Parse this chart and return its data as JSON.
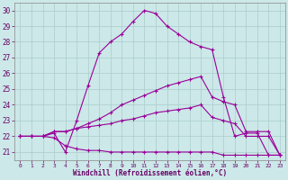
{
  "xlabel": "Windchill (Refroidissement éolien,°C)",
  "bg_color": "#cce8e8",
  "grid_color": "#aacccc",
  "line_color": "#990099",
  "xlim": [
    -0.5,
    23.5
  ],
  "ylim": [
    20.5,
    30.5
  ],
  "xticks": [
    0,
    1,
    2,
    3,
    4,
    5,
    6,
    7,
    8,
    9,
    10,
    11,
    12,
    13,
    14,
    15,
    16,
    17,
    18,
    19,
    20,
    21,
    22,
    23
  ],
  "yticks": [
    21,
    22,
    23,
    24,
    25,
    26,
    27,
    28,
    29,
    30
  ],
  "line1_x": [
    0,
    1,
    2,
    3,
    4,
    5,
    6,
    7,
    8,
    9,
    10,
    11,
    12,
    13,
    14,
    15,
    16,
    17,
    18,
    19,
    20,
    21,
    22,
    23
  ],
  "line1_y": [
    22.0,
    22.0,
    22.0,
    22.2,
    21.0,
    23.0,
    25.2,
    27.3,
    28.0,
    28.5,
    29.3,
    30.0,
    29.8,
    29.0,
    28.5,
    28.0,
    27.7,
    27.5,
    24.5,
    22.0,
    22.2,
    22.2,
    20.8,
    20.8
  ],
  "line2_x": [
    0,
    1,
    2,
    3,
    4,
    5,
    6,
    7,
    8,
    9,
    10,
    11,
    12,
    13,
    14,
    15,
    16,
    17,
    18,
    19,
    20,
    21,
    22,
    23
  ],
  "line2_y": [
    22.0,
    22.0,
    22.0,
    22.3,
    22.3,
    22.5,
    22.8,
    23.1,
    23.5,
    24.0,
    24.3,
    24.6,
    24.9,
    25.2,
    25.4,
    25.6,
    25.8,
    24.5,
    24.2,
    24.0,
    22.3,
    22.3,
    22.3,
    20.8
  ],
  "line3_x": [
    0,
    1,
    2,
    3,
    4,
    5,
    6,
    7,
    8,
    9,
    10,
    11,
    12,
    13,
    14,
    15,
    16,
    17,
    18,
    19,
    20,
    21,
    22,
    23
  ],
  "line3_y": [
    22.0,
    22.0,
    22.0,
    22.3,
    22.3,
    22.5,
    22.6,
    22.7,
    22.8,
    23.0,
    23.1,
    23.3,
    23.5,
    23.6,
    23.7,
    23.8,
    24.0,
    23.2,
    23.0,
    22.8,
    22.0,
    22.0,
    22.0,
    20.8
  ],
  "line4_x": [
    0,
    1,
    2,
    3,
    4,
    5,
    6,
    7,
    8,
    9,
    10,
    11,
    12,
    13,
    14,
    15,
    16,
    17,
    18,
    19,
    20,
    21,
    22,
    23
  ],
  "line4_y": [
    22.0,
    22.0,
    22.0,
    21.9,
    21.4,
    21.2,
    21.1,
    21.1,
    21.0,
    21.0,
    21.0,
    21.0,
    21.0,
    21.0,
    21.0,
    21.0,
    21.0,
    21.0,
    20.8,
    20.8,
    20.8,
    20.8,
    20.8,
    20.8
  ]
}
